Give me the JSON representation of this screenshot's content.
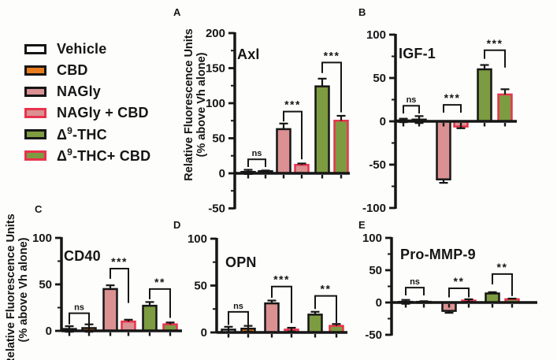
{
  "colors": {
    "ink": "#161616",
    "red_border": "#e8334c",
    "orange": "#e87d1e",
    "pink": "#db9192",
    "green": "#7d9b41",
    "white": "#ffffff",
    "background": "#fdfdfc"
  },
  "legend": {
    "items": [
      {
        "pre": "Vehicle",
        "sup": "",
        "post": "",
        "fill": "#ffffff",
        "border": "#161616"
      },
      {
        "pre": "CBD",
        "sup": "",
        "post": "",
        "fill": "#e87d1e",
        "border": "#161616"
      },
      {
        "pre": "NAGly",
        "sup": "",
        "post": "",
        "fill": "#db9192",
        "border": "#161616"
      },
      {
        "pre": "NAGly + CBD",
        "sup": "",
        "post": "",
        "fill": "#db9192",
        "border": "#e8334c"
      },
      {
        "pre": "Δ",
        "sup": "9",
        "post": "-THC",
        "fill": "#7d9b41",
        "border": "#161616"
      },
      {
        "pre": "Δ",
        "sup": "9",
        "post": "-THC+ CBD",
        "fill": "#7d9b41",
        "border": "#e8334c"
      }
    ]
  },
  "y_axis_label": {
    "line1": "Relative Fluorescence Units",
    "line2": "(% above Vh alone)"
  },
  "chart_data": {
    "type": "bar",
    "description": "Five GraphPad-style grouped bar panels, mean ± SEM, % above vehicle alone",
    "categories": [
      "Vehicle",
      "CBD",
      "NAGly",
      "NAGly + CBD",
      "Δ9-THC",
      "Δ9-THC + CBD"
    ],
    "bar_fills": [
      "#ffffff",
      "#e87d1e",
      "#db9192",
      "#db9192",
      "#7d9b41",
      "#7d9b41"
    ],
    "bar_strokes": [
      "#161616",
      "#161616",
      "#161616",
      "#e8334c",
      "#161616",
      "#e8334c"
    ],
    "ylabel": "Relative Fluorescence Units (% above Vh alone)",
    "panels": [
      {
        "panel": "A",
        "title": "Axl",
        "ylim": [
          -50,
          200
        ],
        "yticks": [
          200,
          150,
          100,
          50,
          0,
          -50
        ],
        "minor_step": 25,
        "values": [
          2,
          3,
          63,
          12,
          124,
          75
        ],
        "errors": [
          3,
          1,
          8,
          2,
          11,
          7
        ],
        "brackets": [
          {
            "between": [
              0,
              1
            ],
            "label": "ns",
            "top": 20,
            "left_y": 9,
            "right_y": 9
          },
          {
            "between": [
              2,
              3
            ],
            "label": "***",
            "top": 88,
            "left_y": 74,
            "right_y": 20
          },
          {
            "between": [
              4,
              5
            ],
            "label": "***",
            "top": 158,
            "left_y": 143,
            "right_y": 87
          }
        ]
      },
      {
        "panel": "B",
        "title": "IGF-1",
        "ylim": [
          -100,
          100
        ],
        "yticks": [
          100,
          50,
          0,
          -50,
          -100
        ],
        "minor_step": 25,
        "values": [
          1,
          2,
          -67,
          -6,
          60,
          31
        ],
        "errors": [
          2,
          4,
          4,
          2,
          5,
          6
        ],
        "brackets": [
          {
            "between": [
              0,
              1
            ],
            "label": "ns",
            "top": 18,
            "left_y": 9,
            "right_y": 9
          },
          {
            "between": [
              2,
              3
            ],
            "label": "***",
            "top": 19,
            "left_y": 10,
            "right_y": 10
          },
          {
            "between": [
              4,
              5
            ],
            "label": "***",
            "top": 82,
            "left_y": 72,
            "right_y": 62
          }
        ]
      },
      {
        "panel": "C",
        "title": "CD40",
        "ylim": [
          0,
          100
        ],
        "yticks": [
          100,
          50,
          0
        ],
        "minor_step": 25,
        "values": [
          2,
          3,
          45,
          10,
          27,
          7
        ],
        "errors": [
          3,
          4,
          4,
          2,
          4,
          2
        ],
        "brackets": [
          {
            "between": [
              0,
              1
            ],
            "label": "ns",
            "top": 19,
            "left_y": 7,
            "right_y": 7
          },
          {
            "between": [
              2,
              3
            ],
            "label": "***",
            "top": 67,
            "left_y": 56,
            "right_y": 30
          },
          {
            "between": [
              4,
              5
            ],
            "label": "**",
            "top": 45,
            "left_y": 34,
            "right_y": 14
          }
        ]
      },
      {
        "panel": "D",
        "title": "OPN",
        "ylim": [
          0,
          100
        ],
        "yticks": [
          100,
          50,
          0
        ],
        "minor_step": 25,
        "values": [
          3,
          4,
          31,
          3,
          19,
          7
        ],
        "errors": [
          3,
          3,
          3,
          2,
          3,
          2
        ],
        "brackets": [
          {
            "between": [
              0,
              1
            ],
            "label": "ns",
            "top": 22,
            "left_y": 8,
            "right_y": 8
          },
          {
            "between": [
              2,
              3
            ],
            "label": "***",
            "top": 49,
            "left_y": 37,
            "right_y": 10
          },
          {
            "between": [
              4,
              5
            ],
            "label": "**",
            "top": 39,
            "left_y": 25,
            "right_y": 10
          }
        ]
      },
      {
        "panel": "E",
        "title": "Pro-MMP-9",
        "ylim": [
          -50,
          100
        ],
        "yticks": [
          100,
          50,
          0,
          -50
        ],
        "minor_step": 25,
        "values": [
          1,
          1,
          -13,
          3,
          14,
          5
        ],
        "errors": [
          3,
          1,
          3,
          2,
          2,
          1
        ],
        "brackets": [
          {
            "between": [
              0,
              1
            ],
            "label": "ns",
            "top": 23,
            "left_y": 11,
            "right_y": 11
          },
          {
            "between": [
              2,
              3
            ],
            "label": "**",
            "top": 22,
            "left_y": 8,
            "right_y": 8
          },
          {
            "between": [
              4,
              5
            ],
            "label": "**",
            "top": 44,
            "left_y": 28,
            "right_y": 10
          }
        ]
      }
    ]
  }
}
